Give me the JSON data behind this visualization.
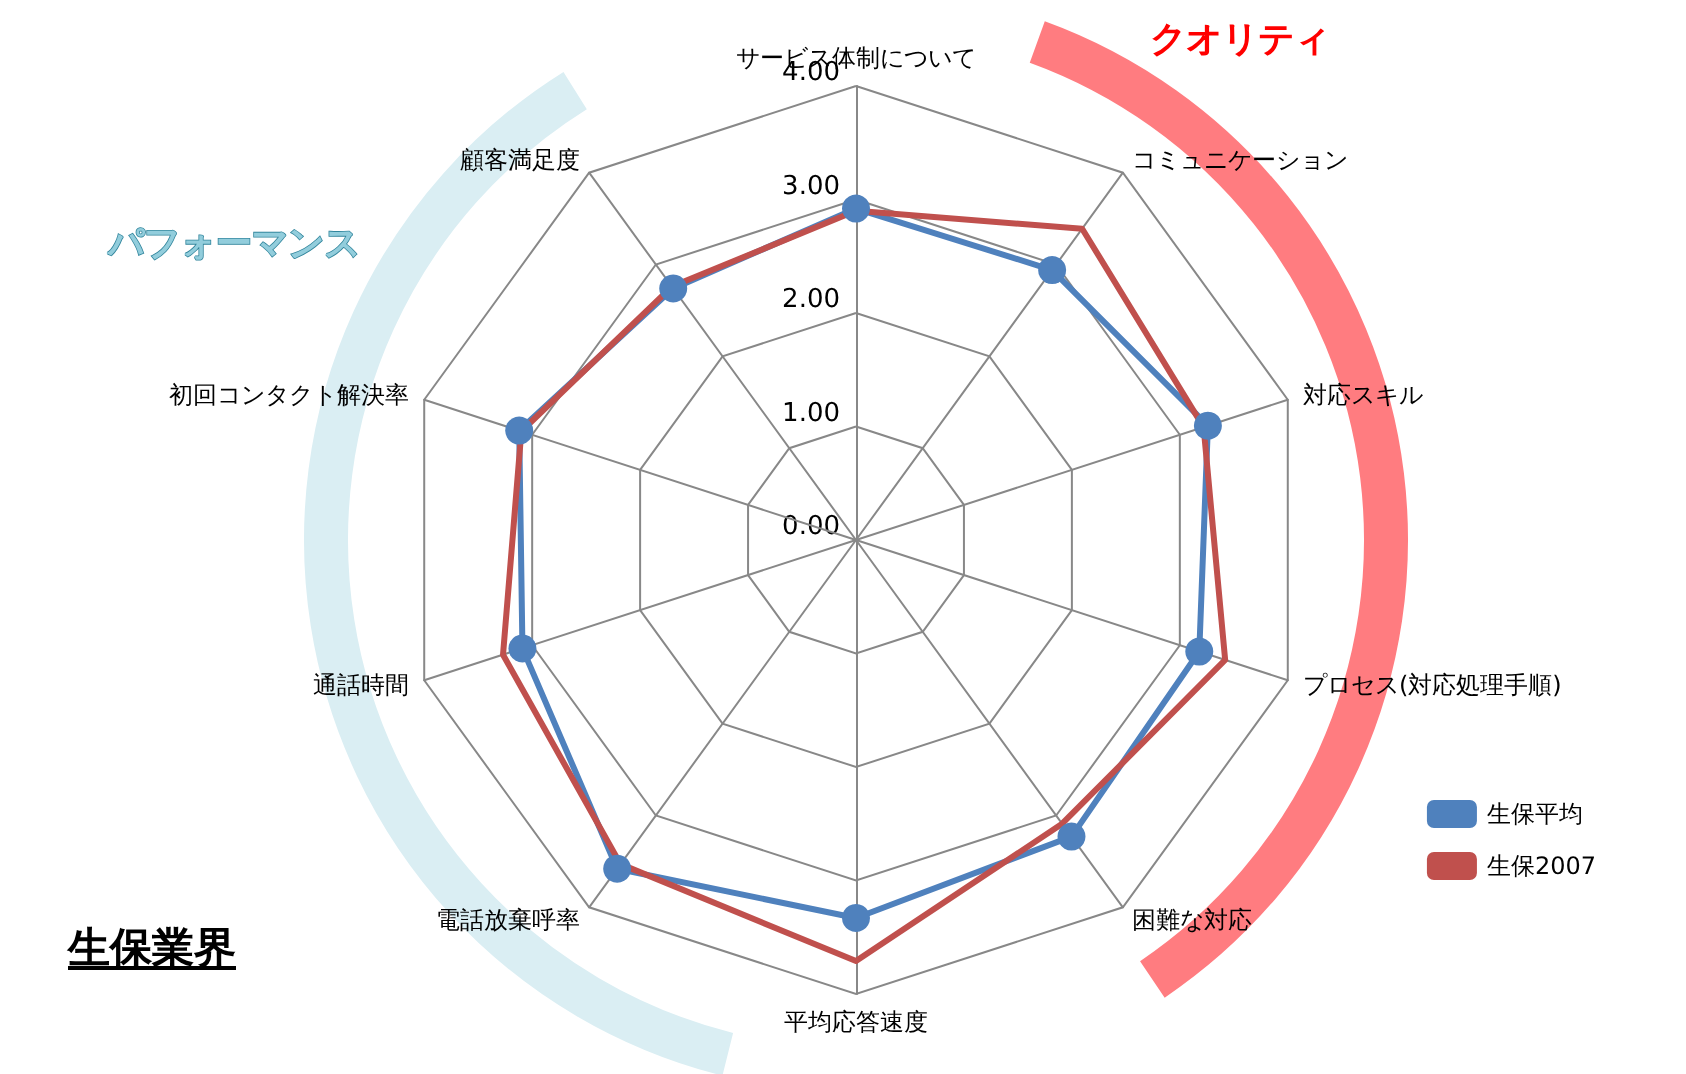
{
  "chart_data": {
    "type": "radar",
    "title": "生保業界",
    "categories": [
      "サービス体制について",
      "コミュニケーション",
      "対応スキル",
      "プロセス(対応処理手順)",
      "困難な対応",
      "平均応答速度",
      "電話放棄呼率",
      "通話時間",
      "初回コンタクト解決率",
      "顧客満足度"
    ],
    "series": [
      {
        "name": "生保平均",
        "color": "#4f81bd",
        "marker": "circle",
        "values": [
          2.92,
          2.94,
          3.26,
          3.18,
          3.23,
          3.33,
          3.58,
          3.09,
          3.12,
          2.74
        ]
      },
      {
        "name": "生保2007",
        "color": "#c0504d",
        "marker": "none",
        "values": [
          2.9,
          3.39,
          3.22,
          3.42,
          3.09,
          3.71,
          3.53,
          3.27,
          3.1,
          2.76
        ]
      }
    ],
    "ylim": [
      0,
      4
    ],
    "yticks": [
      {
        "value": 0,
        "label": "0.00"
      },
      {
        "value": 1,
        "label": "1.00"
      },
      {
        "value": 2,
        "label": "2.00"
      },
      {
        "value": 3,
        "label": "3.00"
      },
      {
        "value": 4,
        "label": "4.00"
      }
    ],
    "annotations": [
      "クオリティ",
      "パフォーマンス"
    ],
    "legend": "bottom right"
  }
}
